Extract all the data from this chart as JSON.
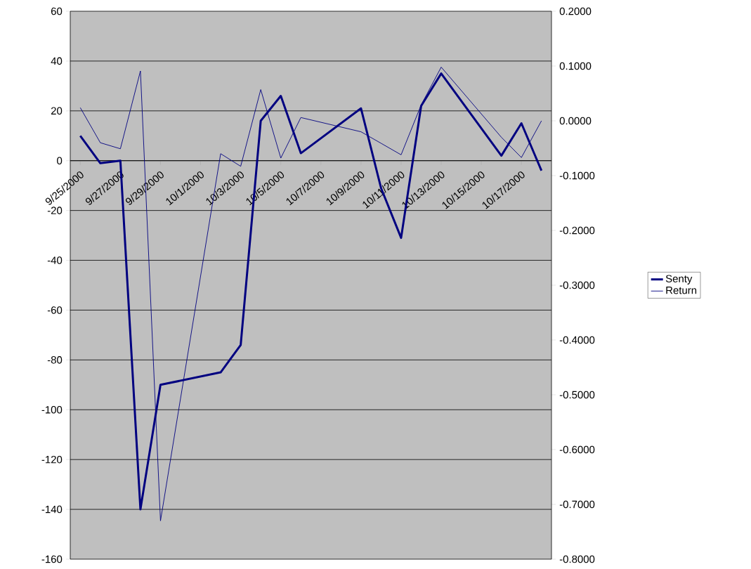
{
  "chart_data": {
    "type": "line",
    "x": [
      "2000-09-25",
      "2000-09-26",
      "2000-09-27",
      "2000-09-28",
      "2000-09-29",
      "2000-10-02",
      "2000-10-03",
      "2000-10-04",
      "2000-10-05",
      "2000-10-06",
      "2000-10-09",
      "2000-10-10",
      "2000-10-11",
      "2000-10-12",
      "2000-10-13",
      "2000-10-16",
      "2000-10-17",
      "2000-10-18"
    ],
    "series": [
      {
        "name": "Senty",
        "color": "#000080",
        "values": [
          10,
          -1,
          0,
          -140,
          -90,
          -85,
          -74,
          16,
          26,
          3,
          21,
          -11,
          -31,
          22,
          35,
          2,
          15,
          -4
        ]
      },
      {
        "name": "Return",
        "color": "#000080",
        "axis": "y2",
        "values": [
          0.024,
          -0.04,
          -0.051,
          0.091,
          -0.73,
          -0.06,
          -0.083,
          0.057,
          -0.068,
          0.006,
          -0.02,
          -0.041,
          -0.062,
          0.029,
          0.098,
          -0.03,
          -0.067,
          0.0
        ]
      }
    ],
    "xlim": [
      "2000-09-24T12:00",
      "2000-10-18T12:00"
    ],
    "xticks": [
      {
        "value": "2000-09-25",
        "label": "9/25/2000"
      },
      {
        "value": "2000-09-27",
        "label": "9/27/2000"
      },
      {
        "value": "2000-09-29",
        "label": "9/29/2000"
      },
      {
        "value": "2000-10-01",
        "label": "10/1/2000"
      },
      {
        "value": "2000-10-03",
        "label": "10/3/2000"
      },
      {
        "value": "2000-10-05",
        "label": "10/5/2000"
      },
      {
        "value": "2000-10-07",
        "label": "10/7/2000"
      },
      {
        "value": "2000-10-09",
        "label": "10/9/2000"
      },
      {
        "value": "2000-10-11",
        "label": "10/11/2000"
      },
      {
        "value": "2000-10-13",
        "label": "10/13/2000"
      },
      {
        "value": "2000-10-15",
        "label": "10/15/2000"
      },
      {
        "value": "2000-10-17",
        "label": "10/17/2000"
      }
    ],
    "ylim": [
      -160,
      60
    ],
    "yticks": [
      -160,
      -140,
      -120,
      -100,
      -80,
      -60,
      -40,
      -20,
      0,
      20,
      40,
      60
    ],
    "y2lim": [
      -0.8,
      0.2
    ],
    "y2ticks": [
      {
        "value": -0.8,
        "label": "-0.8000"
      },
      {
        "value": -0.7,
        "label": "-0.7000"
      },
      {
        "value": -0.6,
        "label": "-0.6000"
      },
      {
        "value": -0.5,
        "label": "-0.5000"
      },
      {
        "value": -0.4,
        "label": "-0.4000"
      },
      {
        "value": -0.3,
        "label": "-0.3000"
      },
      {
        "value": -0.2,
        "label": "-0.2000"
      },
      {
        "value": -0.1,
        "label": "-0.1000"
      },
      {
        "value": 0,
        "label": "0.0000"
      },
      {
        "value": 0.1,
        "label": "0.1000"
      },
      {
        "value": 0.2,
        "label": "0.2000"
      }
    ],
    "grid": "y",
    "legend": "right",
    "marker": "none",
    "line_style": "solid"
  }
}
